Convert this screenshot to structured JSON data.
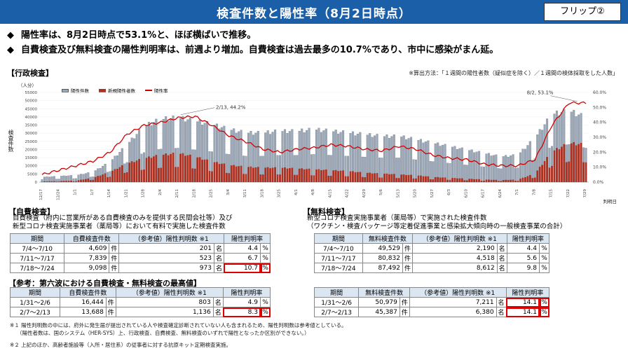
{
  "header": {
    "title": "検査件数と陽性率（8月2日時点）",
    "flip": "フリップ②"
  },
  "bullets": [
    {
      "mark": "◆",
      "text": "陽性率は、8月2日時点で53.1%と、ほぼ横ばいで推移。"
    },
    {
      "mark": "◆",
      "text": "自費検査及び無料検査の陽性判明率は、前週より増加。自費検査は過去最多の10.7%であり、市中に感染がまん延。"
    }
  ],
  "admin": {
    "title": "【行政検査】",
    "calc_note": "※算出方法：「１週間の陽性者数（疑似症を除く）／１週間の検体採取をした人数」",
    "unit": "（人分）",
    "ylabel": "検査件数",
    "judgement_date": "判明日",
    "annotations": [
      "2/13, 44.2%",
      "8/2, 53.1%"
    ]
  },
  "chart_data": {
    "type": "bar",
    "legend": [
      "陽性件数",
      "新規陽性者数",
      "陽性率"
    ],
    "x_ticks": [
      "12/17",
      "12/24",
      "1/1",
      "1/7",
      "1/14",
      "1/21",
      "1/28",
      "2/4",
      "2/11",
      "2/18",
      "2/25",
      "3/4",
      "3/11",
      "3/18",
      "3/25",
      "4/1",
      "4/8",
      "4/15",
      "4/22",
      "4/29",
      "5/6",
      "5/13",
      "5/20",
      "5/27",
      "6/3",
      "6/10",
      "6/17",
      "6/24",
      "7/1",
      "7/8",
      "7/15",
      "7/22",
      "7/29"
    ],
    "y_left_ticks": [
      "0",
      "5000",
      "10000",
      "15000",
      "20000",
      "25000",
      "30000",
      "35000",
      "40000",
      "45000",
      "50000",
      "55000"
    ],
    "y_right_ticks": [
      "0.0%",
      "10.0%",
      "20.0%",
      "30.0%",
      "40.0%",
      "50.0%",
      "60.0%"
    ],
    "ylim": [
      0,
      55000
    ],
    "ylim_right": [
      0,
      60
    ],
    "tests_weekly": [
      3000,
      3500,
      4000,
      6000,
      12000,
      22000,
      33000,
      37000,
      38000,
      36000,
      34000,
      31000,
      29000,
      29000,
      30000,
      30000,
      31000,
      30000,
      29000,
      28000,
      27000,
      27000,
      25000,
      23000,
      21000,
      19000,
      17000,
      15000,
      16000,
      26000,
      40000,
      42000,
      38000
    ],
    "positives_weekly": [
      400,
      600,
      900,
      2500,
      6000,
      11000,
      14000,
      16000,
      17000,
      15000,
      12000,
      10000,
      9000,
      8500,
      8500,
      8000,
      7500,
      7000,
      6500,
      5500,
      5000,
      4500,
      4000,
      3000,
      2500,
      2000,
      1500,
      1200,
      1500,
      5000,
      18000,
      23000,
      22000
    ],
    "positivity_weekly": [
      5,
      8,
      11,
      14,
      20,
      32,
      38,
      40,
      43,
      44,
      38,
      31,
      27,
      22,
      20,
      22,
      23,
      25,
      24,
      22,
      21,
      24,
      22,
      18,
      16,
      15,
      12,
      11,
      11,
      15,
      38,
      53,
      53
    ]
  },
  "self_paid": {
    "title": "【自費検査】",
    "desc1": "自費検査（府内に営業所がある自費検査のみを提供する民間会社等）及び",
    "desc2": "新型コロナ検査実施事業者（薬局等）において有料で実施した検査件数",
    "headers": [
      "期間",
      "自費検査件数",
      "（参考値）陽性判明数 ※1",
      "陽性判明率"
    ],
    "rows": [
      {
        "period": "7/4～7/10",
        "count": "4,609",
        "cu": "件",
        "pos": "201",
        "pu": "名",
        "rate": "4.4",
        "ru": "%"
      },
      {
        "period": "7/11～7/17",
        "count": "7,839",
        "cu": "件",
        "pos": "523",
        "pu": "名",
        "rate": "6.7",
        "ru": "%"
      },
      {
        "period": "7/18～7/24",
        "count": "9,098",
        "cu": "件",
        "pos": "973",
        "pu": "名",
        "rate": "10.7",
        "ru": "%"
      }
    ]
  },
  "free": {
    "title": "【無料検査】",
    "desc1": "新型コロナ検査実施事業者（薬局等）で実施された検査件数",
    "desc2": "（ワクチン・検査パッケージ等定着促進事業と感染拡大傾向時の一般検査事業の合計）",
    "headers": [
      "期間",
      "無料検査件数",
      "（参考値）陽性判明数 ※1",
      "陽性判明率"
    ],
    "rows": [
      {
        "period": "7/4～7/10",
        "count": "49,529",
        "cu": "件",
        "pos": "2,190",
        "pu": "名",
        "rate": "4.4",
        "ru": "%"
      },
      {
        "period": "7/11～7/17",
        "count": "80,832",
        "cu": "件",
        "pos": "4,518",
        "pu": "名",
        "rate": "5.6",
        "ru": "%"
      },
      {
        "period": "7/18～7/24",
        "count": "87,492",
        "cu": "件",
        "pos": "8,612",
        "pu": "名",
        "rate": "9.8",
        "ru": "%"
      }
    ]
  },
  "ref": {
    "title": "【参考：第六波における自費検査・無料検査の最高値】",
    "self_headers": [
      "期間",
      "自費検査件数",
      "（参考値）陽性判明数 ※1",
      "陽性判明率"
    ],
    "self_rows": [
      {
        "period": "1/31～2/6",
        "count": "16,444",
        "cu": "件",
        "pos": "803",
        "pu": "名",
        "rate": "4.9",
        "ru": "%"
      },
      {
        "period": "2/7～2/13",
        "count": "13,688",
        "cu": "件",
        "pos": "1,136",
        "pu": "名",
        "rate": "8.3",
        "ru": "%"
      }
    ],
    "free_headers": [
      "期間",
      "無料検査件数",
      "（参考値）陽性判明数 ※1",
      "陽性判明率"
    ],
    "free_rows": [
      {
        "period": "1/31～2/6",
        "count": "50,979",
        "cu": "件",
        "pos": "7,211",
        "pu": "名",
        "rate": "14.1",
        "ru": "%"
      },
      {
        "period": "2/7～2/13",
        "count": "45,387",
        "cu": "件",
        "pos": "6,380",
        "pu": "名",
        "rate": "14.1",
        "ru": "%"
      }
    ]
  },
  "footnotes": [
    "※１ 陽性判明数の中には、府外に発生届が提出されている人や検査確定診断されていない人も含まれるため、陽性判明数は参考値としている。",
    "（陽性者数は、国のシステム（HER-SYS）上、行政検査、自費検査、無料検査のいずれで陽性となったか区別ができない。）",
    "※２ 上記のほか、高齢者施設等（入所・居住系）の従事者に対する抗原キット定期検査実施。"
  ],
  "colors": {
    "title_bg": "#1a5fa8",
    "bar": "#9aa8b8",
    "bar_pos": "#b03020",
    "line": "#d00000",
    "highlight": "#d00000"
  }
}
